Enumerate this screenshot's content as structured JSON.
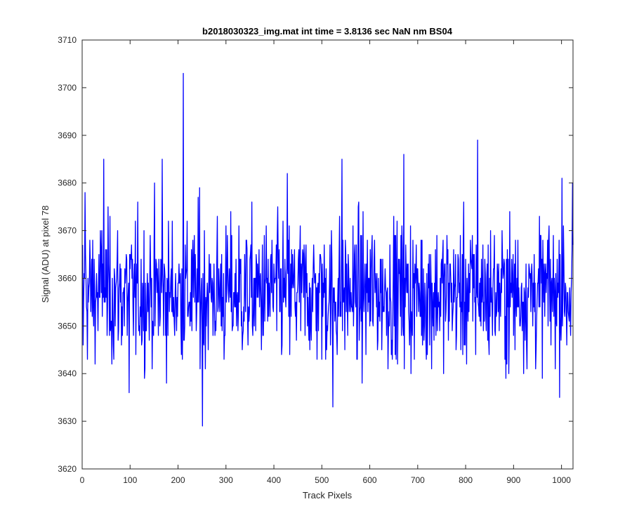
{
  "chart_data": {
    "type": "line",
    "title": "b2018030323_img.mat int time = 3.8136 sec  NaN nm BS04",
    "xlabel": "Track Pixels",
    "ylabel": "Signal (ADU) at pixel 78",
    "xlim": [
      0,
      1024
    ],
    "ylim": [
      3620,
      3710
    ],
    "xticks": [
      0,
      100,
      200,
      300,
      400,
      500,
      600,
      700,
      800,
      900,
      1000
    ],
    "yticks": [
      3620,
      3630,
      3640,
      3650,
      3660,
      3670,
      3680,
      3690,
      3700,
      3710
    ],
    "grid": false,
    "series_color": "#0000ff",
    "noise": {
      "n_points": 1024,
      "baseline": 3657,
      "min": 3629,
      "max": 3703
    },
    "notable_points": [
      {
        "x": 1,
        "y": 3646
      },
      {
        "x": 5,
        "y": 3678
      },
      {
        "x": 44,
        "y": 3685
      },
      {
        "x": 97,
        "y": 3636
      },
      {
        "x": 150,
        "y": 3680
      },
      {
        "x": 166,
        "y": 3685
      },
      {
        "x": 210,
        "y": 3703
      },
      {
        "x": 244,
        "y": 3679
      },
      {
        "x": 250,
        "y": 3629
      },
      {
        "x": 427,
        "y": 3682
      },
      {
        "x": 522,
        "y": 3633
      },
      {
        "x": 541,
        "y": 3685
      },
      {
        "x": 670,
        "y": 3686
      },
      {
        "x": 824,
        "y": 3689
      },
      {
        "x": 1000,
        "y": 3681
      },
      {
        "x": 1022,
        "y": 3680
      }
    ]
  }
}
